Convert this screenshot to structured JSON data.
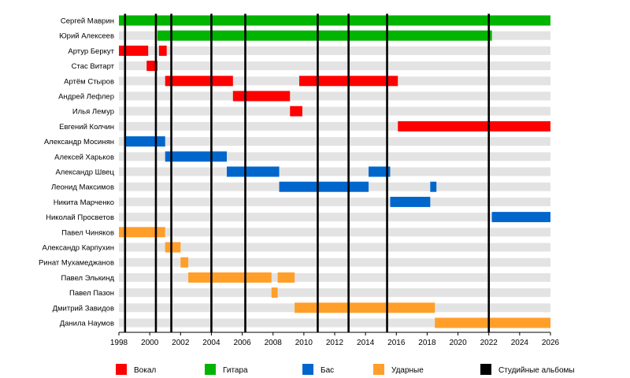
{
  "chart_data": {
    "type": "timeline",
    "x_range": [
      1998,
      2026
    ],
    "x_ticks": [
      "1998",
      "2000",
      "2002",
      "2004",
      "2006",
      "2008",
      "2010",
      "2012",
      "2014",
      "2016",
      "2018",
      "2020",
      "2022",
      "2024",
      "2026"
    ],
    "members": [
      "Сергей Маврин",
      "Юрий Алексеев",
      "Артур Беркут",
      "Стас Витарт",
      "Артём Стыров",
      "Андрей Лефлер",
      "Илья Лемур",
      "Евгений Колчин",
      "Александр Мосинян",
      "Алексей Харьков",
      "Александр Швец",
      "Леонид Максимов",
      "Никита Марченко",
      "Николай Просветов",
      "Павел Чиняков",
      "Александр Карпухин",
      "Ринат Мухамеджанов",
      "Павел Элькинд",
      "Павел Пазон",
      "Дмитрий Завидов",
      "Данила Наумов"
    ],
    "roles": [
      {
        "key": "vocals",
        "label": "Вокал",
        "color": "#ff0000"
      },
      {
        "key": "guitar",
        "label": "Гитара",
        "color": "#00b400"
      },
      {
        "key": "bass",
        "label": "Бас",
        "color": "#0066cc"
      },
      {
        "key": "drums",
        "label": "Ударные",
        "color": "#ff9f2a"
      },
      {
        "key": "albums",
        "label": "Студийные альбомы",
        "color": "#000000"
      }
    ],
    "segments": [
      {
        "member": 0,
        "role": "guitar",
        "start": 1998.0,
        "end": 2026.0
      },
      {
        "member": 1,
        "role": "guitar",
        "start": 2000.5,
        "end": 2022.2
      },
      {
        "member": 2,
        "role": "vocals",
        "start": 1998.0,
        "end": 1999.9
      },
      {
        "member": 2,
        "role": "vocals",
        "start": 2000.6,
        "end": 2001.1
      },
      {
        "member": 3,
        "role": "vocals",
        "start": 1999.8,
        "end": 2000.5
      },
      {
        "member": 4,
        "role": "vocals",
        "start": 2001.0,
        "end": 2005.4
      },
      {
        "member": 4,
        "role": "vocals",
        "start": 2009.7,
        "end": 2016.1
      },
      {
        "member": 5,
        "role": "vocals",
        "start": 2005.4,
        "end": 2009.1
      },
      {
        "member": 6,
        "role": "vocals",
        "start": 2009.1,
        "end": 2009.9
      },
      {
        "member": 7,
        "role": "vocals",
        "start": 2016.1,
        "end": 2026.0
      },
      {
        "member": 8,
        "role": "bass",
        "start": 1998.4,
        "end": 2001.0
      },
      {
        "member": 9,
        "role": "bass",
        "start": 2001.0,
        "end": 2005.0
      },
      {
        "member": 10,
        "role": "bass",
        "start": 2005.0,
        "end": 2008.4
      },
      {
        "member": 10,
        "role": "bass",
        "start": 2014.2,
        "end": 2015.6
      },
      {
        "member": 11,
        "role": "bass",
        "start": 2008.4,
        "end": 2014.2
      },
      {
        "member": 11,
        "role": "bass",
        "start": 2018.2,
        "end": 2018.6
      },
      {
        "member": 12,
        "role": "bass",
        "start": 2015.6,
        "end": 2018.2
      },
      {
        "member": 13,
        "role": "bass",
        "start": 2022.2,
        "end": 2026.0
      },
      {
        "member": 14,
        "role": "drums",
        "start": 1998.0,
        "end": 2001.0
      },
      {
        "member": 15,
        "role": "drums",
        "start": 2001.0,
        "end": 2002.0
      },
      {
        "member": 16,
        "role": "drums",
        "start": 2002.0,
        "end": 2002.5
      },
      {
        "member": 17,
        "role": "drums",
        "start": 2002.5,
        "end": 2007.9
      },
      {
        "member": 17,
        "role": "drums",
        "start": 2008.3,
        "end": 2009.4
      },
      {
        "member": 18,
        "role": "drums",
        "start": 2007.9,
        "end": 2008.3
      },
      {
        "member": 19,
        "role": "drums",
        "start": 2009.4,
        "end": 2018.5
      },
      {
        "member": 20,
        "role": "drums",
        "start": 2018.5,
        "end": 2026.0
      }
    ],
    "albums": [
      1998.4,
      2000.4,
      2001.4,
      2004.0,
      2006.2,
      2010.9,
      2012.9,
      2015.4,
      2022.0
    ],
    "grid": "horizontal stripes",
    "legend_position": "bottom"
  }
}
